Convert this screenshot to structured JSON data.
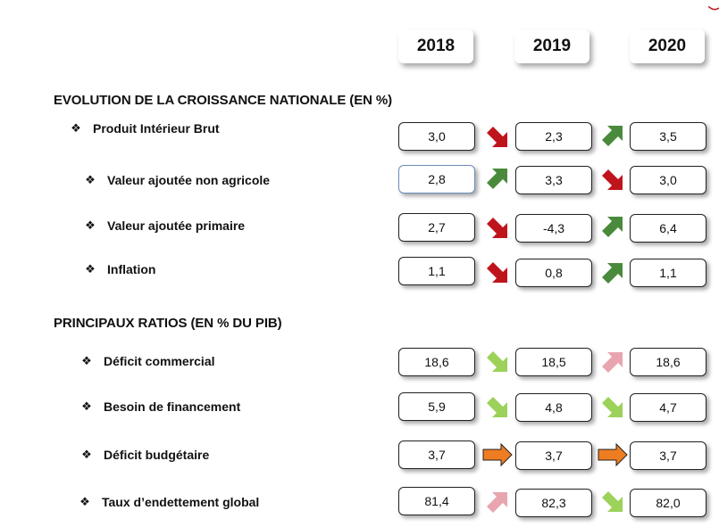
{
  "years": [
    "2018",
    "2019",
    "2020"
  ],
  "colors": {
    "down_dark": "#c0141c",
    "up_dark": "#4a8a3c",
    "up_light": "#9cd15a",
    "down_light": "#e8a5b0",
    "stable": "#ee7d22"
  },
  "sections": [
    {
      "title": "EVOLUTION DE LA CROISSANCE NATIONALE (EN %)",
      "rows": [
        {
          "label": "Produit Intérieur Brut",
          "values": [
            "3,0",
            "2,3",
            "3,5"
          ],
          "arrows": [
            "down-dark",
            "up-dark"
          ]
        },
        {
          "label": "Valeur ajoutée non agricole",
          "values": [
            "2,8",
            "3,3",
            "3,0"
          ],
          "arrows": [
            "up-dark",
            "down-dark"
          ]
        },
        {
          "label": "Valeur ajoutée primaire",
          "values": [
            "2,7",
            "-4,3",
            "6,4"
          ],
          "arrows": [
            "down-dark",
            "up-dark"
          ]
        },
        {
          "label": "Inflation",
          "values": [
            "1,1",
            "0,8",
            "1,1"
          ],
          "arrows": [
            "down-dark",
            "up-dark"
          ]
        }
      ]
    },
    {
      "title": "PRINCIPAUX RATIOS (EN % DU PIB)",
      "rows": [
        {
          "label": "Déficit commercial",
          "values": [
            "18,6",
            "18,5",
            "18,6"
          ],
          "arrows": [
            "down-light-green",
            "up-light-pink"
          ]
        },
        {
          "label": "Besoin de financement",
          "values": [
            "5,9",
            "4,8",
            "4,7"
          ],
          "arrows": [
            "down-light-green",
            "down-light-green"
          ]
        },
        {
          "label": "Déficit budgétaire",
          "values": [
            "3,7",
            "3,7",
            "3,7"
          ],
          "arrows": [
            "stable",
            "stable"
          ]
        },
        {
          "label": "Taux d’endettement global",
          "values": [
            "81,4",
            "82,3",
            "82,0"
          ],
          "arrows": [
            "up-light-pink",
            "down-light-green"
          ]
        }
      ]
    }
  ],
  "bullet_icon": "diamond-bullet-icon"
}
